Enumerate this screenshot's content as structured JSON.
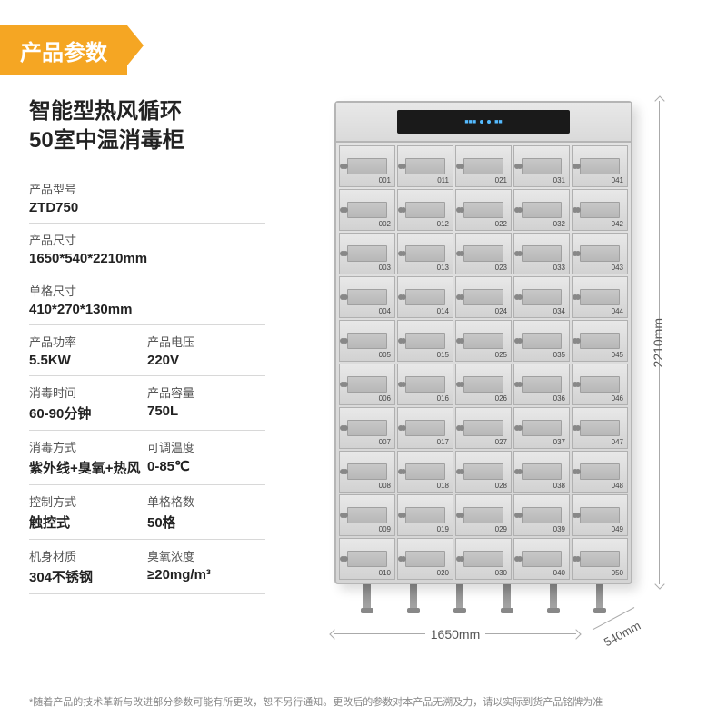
{
  "header": "产品参数",
  "title_line1": "智能型热风循环",
  "title_line2": "50室中温消毒柜",
  "specs": [
    {
      "cells": [
        {
          "label": "产品型号",
          "value": "ZTD750"
        }
      ]
    },
    {
      "cells": [
        {
          "label": "产品尺寸",
          "value": "1650*540*2210mm"
        }
      ]
    },
    {
      "cells": [
        {
          "label": "单格尺寸",
          "value": "410*270*130mm"
        }
      ]
    },
    {
      "cells": [
        {
          "label": "产品功率",
          "value": "5.5KW"
        },
        {
          "label": "产品电压",
          "value": "220V"
        }
      ]
    },
    {
      "cells": [
        {
          "label": "消毒时间",
          "value": "60-90分钟"
        },
        {
          "label": "产品容量",
          "value": "750L"
        }
      ]
    },
    {
      "cells": [
        {
          "label": "消毒方式",
          "value": "紫外线+臭氧+热风"
        },
        {
          "label": "可调温度",
          "value": "0-85℃"
        }
      ]
    },
    {
      "cells": [
        {
          "label": "控制方式",
          "value": "触控式"
        },
        {
          "label": "单格格数",
          "value": "50格"
        }
      ]
    },
    {
      "cells": [
        {
          "label": "机身材质",
          "value": "304不锈钢"
        },
        {
          "label": "臭氧浓度",
          "value": "≥20mg/m³"
        }
      ]
    }
  ],
  "cabinet": {
    "rows": 10,
    "cols": 5,
    "dim_height": "2210mm",
    "dim_width": "1650mm",
    "dim_depth": "540mm"
  },
  "footnote": "*随着产品的技术革新与改进部分参数可能有所更改，恕不另行通知。更改后的参数对本产品无溯及力，请以实际到货产品铭牌为准"
}
